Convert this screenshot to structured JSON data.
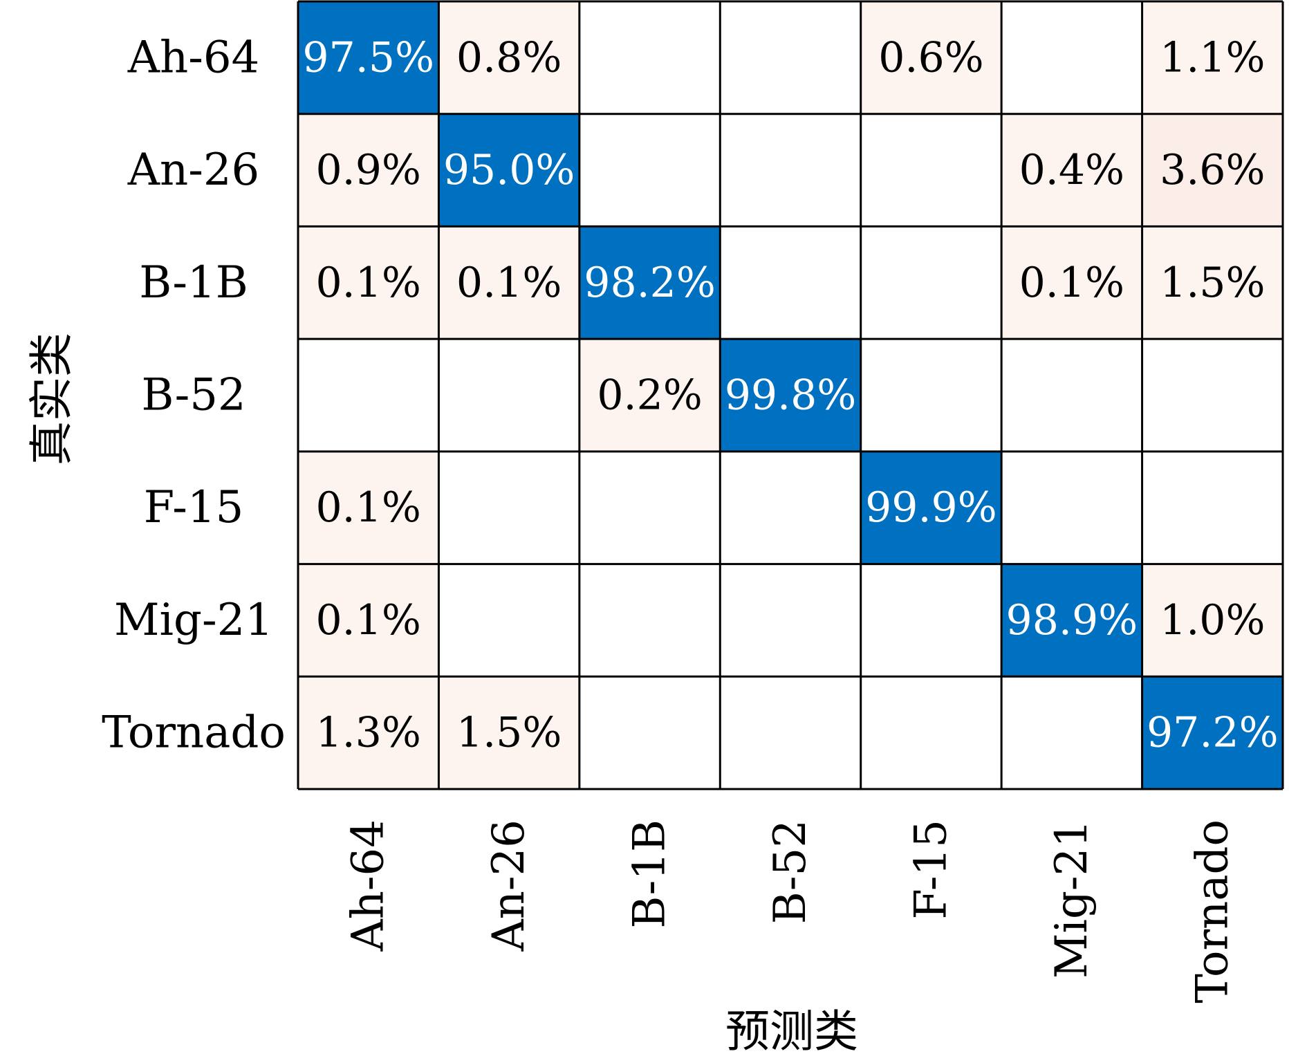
{
  "chart_data": {
    "type": "heatmap",
    "title": "",
    "xlabel": "预测类",
    "ylabel": "真实类",
    "x_categories": [
      "Ah-64",
      "An-26",
      "B-1B",
      "B-52",
      "F-15",
      "Mig-21",
      "Tornado"
    ],
    "y_categories": [
      "Ah-64",
      "An-26",
      "B-1B",
      "B-52",
      "F-15",
      "Mig-21",
      "Tornado"
    ],
    "values": [
      [
        97.5,
        0.8,
        null,
        null,
        0.6,
        null,
        1.1
      ],
      [
        0.9,
        95.0,
        null,
        null,
        null,
        0.4,
        3.6
      ],
      [
        0.1,
        0.1,
        98.2,
        null,
        null,
        0.1,
        1.5
      ],
      [
        null,
        null,
        0.2,
        99.8,
        null,
        null,
        null
      ],
      [
        0.1,
        null,
        null,
        null,
        99.9,
        null,
        null
      ],
      [
        0.1,
        null,
        null,
        null,
        null,
        98.9,
        1.0
      ],
      [
        1.3,
        1.5,
        null,
        null,
        null,
        null,
        97.2
      ]
    ],
    "labels": [
      [
        "97.5%",
        "0.8%",
        "",
        "",
        "0.6%",
        "",
        "1.1%"
      ],
      [
        "0.9%",
        "95.0%",
        "",
        "",
        "",
        "0.4%",
        "3.6%"
      ],
      [
        "0.1%",
        "0.1%",
        "98.2%",
        "",
        "",
        "0.1%",
        "1.5%"
      ],
      [
        "",
        "",
        "0.2%",
        "99.8%",
        "",
        "",
        ""
      ],
      [
        "0.1%",
        "",
        "",
        "",
        "99.9%",
        "",
        ""
      ],
      [
        "0.1%",
        "",
        "",
        "",
        "",
        "98.9%",
        "1.0%"
      ],
      [
        "1.3%",
        "1.5%",
        "",
        "",
        "",
        "",
        "97.2%"
      ]
    ],
    "colors": {
      "diagonal": "#0070c0",
      "off_diagonal": "#fdf4ef",
      "off_diagonal_high": "#fbeee8",
      "empty": "#ffffff",
      "grid": "#000000"
    }
  }
}
